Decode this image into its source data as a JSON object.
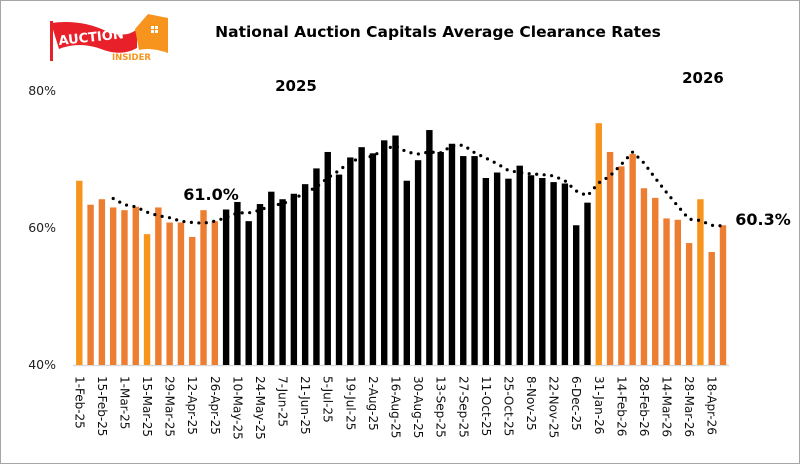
{
  "logo": {
    "text_main": "AUCTION",
    "text_sub": "INSIDER",
    "colors": {
      "red": "#E8202A",
      "orange": "#F7941D"
    }
  },
  "chart_data": {
    "type": "bar",
    "title": "National Auction Capitals Average Clearance Rates",
    "year_labels": [
      "2025",
      "2026"
    ],
    "annotations": [
      "61.0%",
      "60.3%"
    ],
    "ylim": [
      40,
      80
    ],
    "yticks": [
      "80%",
      "60%",
      "40%"
    ],
    "ytick_values": [
      80,
      60,
      40
    ],
    "grid": false,
    "legend": "none",
    "colors": {
      "orange": "#ED7D31",
      "light_orange": "#F7941D",
      "black": "#000000",
      "trend": "#000000",
      "axis": "#d9d9d9"
    },
    "categories": [
      "1-Feb-25",
      "",
      "15-Feb-25",
      "",
      "1-Mar-25",
      "",
      "15-Mar-25",
      "",
      "29-Mar-25",
      "",
      "12-Apr-25",
      "",
      "26-Apr-25",
      "",
      "10-May-25",
      "",
      "24-May-25",
      "",
      "7-Jun-25",
      "",
      "21-Jun-25",
      "",
      "5-Jul-25",
      "",
      "19-Jul-25",
      "",
      "2-Aug-25",
      "",
      "16-Aug-25",
      "",
      "30-Aug-25",
      "",
      "13-Sep-25",
      "",
      "27-Sep-25",
      "",
      "11-Oct-25",
      "",
      "25-Oct-25",
      "",
      "8-Nov-25",
      "",
      "22-Nov-25",
      "",
      "6-Dec-25",
      "",
      "31-Jan-26",
      "",
      "14-Feb-26",
      "",
      "28-Feb-26",
      "",
      "14-Mar-26",
      "",
      "28-Mar-26",
      "",
      "18-Apr-26",
      ""
    ],
    "values": [
      66.9,
      63.4,
      64.2,
      63.0,
      62.6,
      63.1,
      59.1,
      63.0,
      60.8,
      60.8,
      58.7,
      62.6,
      61.0,
      62.7,
      63.8,
      61.0,
      63.5,
      65.3,
      64.2,
      65.0,
      66.4,
      68.7,
      71.1,
      67.8,
      70.3,
      71.8,
      70.9,
      72.8,
      73.5,
      66.9,
      69.9,
      74.3,
      71.1,
      72.3,
      70.5,
      70.5,
      67.3,
      68.1,
      67.2,
      69.1,
      67.7,
      67.3,
      66.7,
      66.5,
      60.4,
      63.7,
      75.3,
      71.1,
      69.0,
      70.8,
      65.8,
      64.4,
      61.4,
      61.2,
      57.8,
      64.2,
      56.5,
      60.4
    ],
    "bar_colors": [
      "light_orange",
      "orange",
      "orange",
      "orange",
      "orange",
      "orange",
      "light_orange",
      "orange",
      "orange",
      "orange",
      "orange",
      "orange",
      "orange",
      "black",
      "black",
      "black",
      "black",
      "black",
      "black",
      "black",
      "black",
      "black",
      "black",
      "black",
      "black",
      "black",
      "black",
      "black",
      "black",
      "black",
      "black",
      "black",
      "black",
      "black",
      "black",
      "black",
      "black",
      "black",
      "black",
      "black",
      "black",
      "black",
      "black",
      "black",
      "black",
      "black",
      "light_orange",
      "orange",
      "orange",
      "orange",
      "orange",
      "orange",
      "orange",
      "orange",
      "orange",
      "light_orange",
      "orange",
      "orange"
    ],
    "trend": {
      "style": "dotted",
      "values": [
        null,
        null,
        null,
        64.3,
        63.4,
        63.1,
        62.3,
        61.8,
        61.5,
        61.0,
        60.8,
        60.7,
        61.0,
        61.5,
        62.2,
        62.2,
        62.6,
        63.3,
        63.5,
        64.3,
        65.1,
        66.0,
        67.3,
        68.4,
        69.7,
        70.2,
        70.5,
        71.5,
        72.0,
        71.1,
        70.8,
        71.1,
        71.0,
        72.0,
        72.1,
        71.0,
        70.2,
        69.4,
        68.4,
        68.1,
        67.9,
        67.8,
        67.6,
        66.9,
        65.4,
        64.7,
        66.6,
        67.6,
        69.3,
        71.1,
        69.5,
        67.3,
        65.2,
        63.2,
        61.3,
        61.1,
        60.4,
        60.3
      ]
    }
  }
}
